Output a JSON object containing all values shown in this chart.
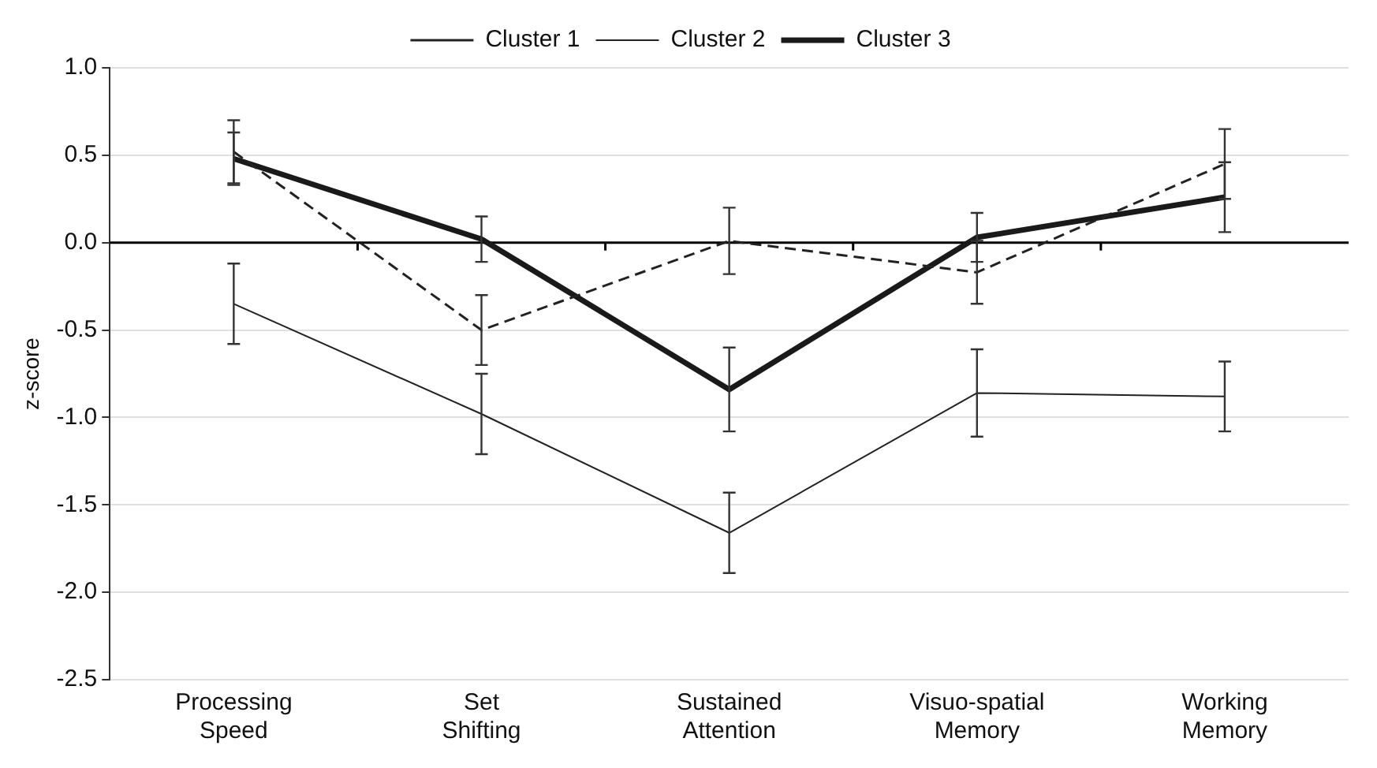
{
  "chart_data": {
    "type": "line",
    "ylabel": "z-score",
    "categories": [
      "Processing Speed",
      "Set Shifting",
      "Sustained Attention",
      "Visuo-spatial Memory",
      "Working Memory"
    ],
    "series": [
      {
        "name": "Cluster 1",
        "color": "#222222",
        "line_style": "dashed",
        "values": [
          0.52,
          -0.5,
          0.01,
          -0.17,
          0.45
        ],
        "errors": [
          0.18,
          0.2,
          0.19,
          0.18,
          0.2
        ]
      },
      {
        "name": "Cluster 2",
        "color": "#222222",
        "line_style": "solid",
        "values": [
          -0.35,
          -0.98,
          -1.66,
          -0.86,
          -0.88
        ],
        "errors": [
          0.23,
          0.23,
          0.23,
          0.25,
          0.2
        ]
      },
      {
        "name": "Cluster 3",
        "color": "#1a1a1a",
        "line_style": "solid",
        "values": [
          0.48,
          0.02,
          -0.84,
          0.03,
          0.26
        ],
        "errors": [
          0.15,
          0.13,
          0.24,
          0.14,
          0.2
        ]
      }
    ],
    "ylim": [
      -2.5,
      1.0
    ],
    "yticks": [
      {
        "value": -2.5,
        "label": "-2.5"
      },
      {
        "value": -2,
        "label": "-2.0"
      },
      {
        "value": -1.5,
        "label": "-1.5"
      },
      {
        "value": -1,
        "label": "-1.0"
      },
      {
        "value": -0.5,
        "label": "-0.5"
      },
      {
        "value": 0,
        "label": "0.0"
      },
      {
        "value": 0.5,
        "label": "0.5"
      },
      {
        "value": 1,
        "label": "1.0"
      }
    ],
    "grid": "y",
    "legend": "top",
    "marker": "none",
    "ref_lines": [
      {
        "axis": "y",
        "value": 0,
        "color": "#000000"
      }
    ]
  }
}
